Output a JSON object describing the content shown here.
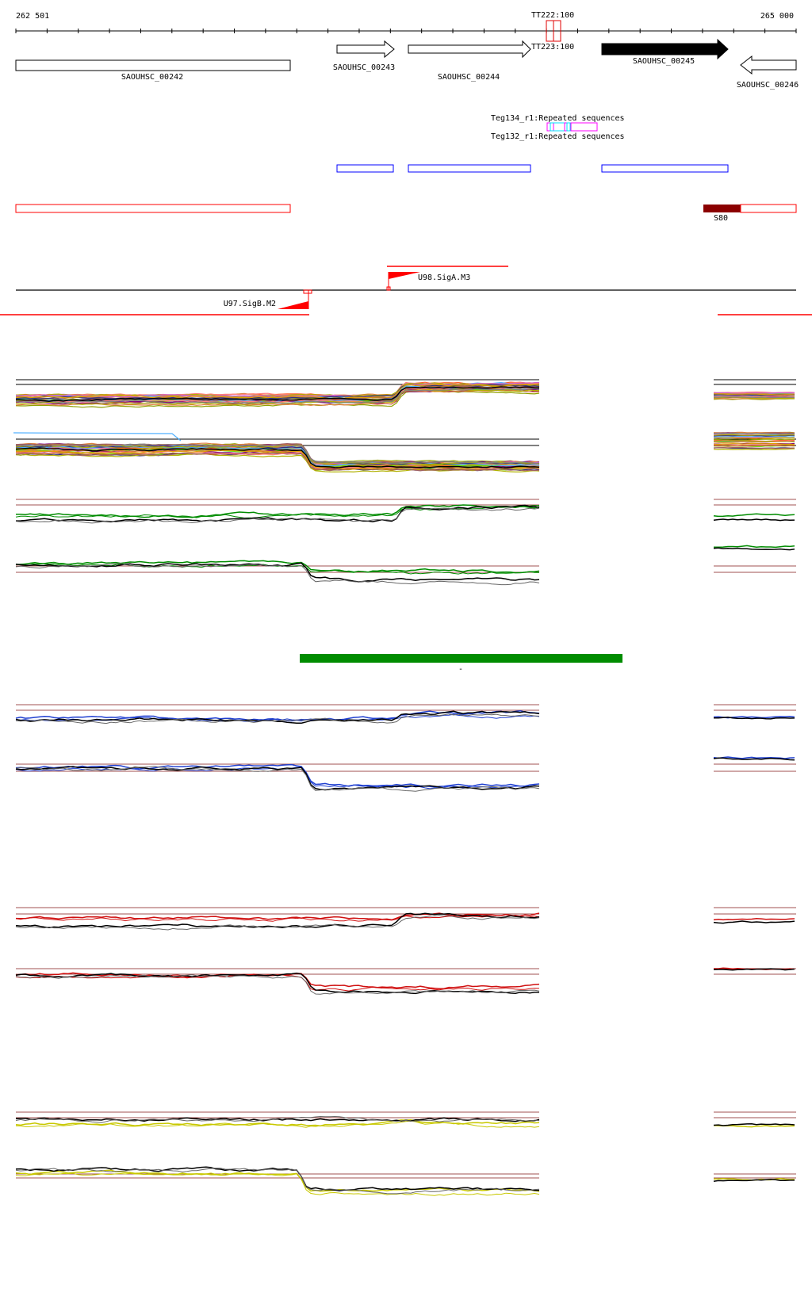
{
  "axis": {
    "start_label": "262 501",
    "end_label": "265 000"
  },
  "terminators": [
    {
      "label": "TT222:100"
    },
    {
      "label": "TT223:100"
    }
  ],
  "genes": [
    {
      "name": "SAOUHSC_00242",
      "strand": "none"
    },
    {
      "name": "SAOUHSC_00243",
      "strand": "+"
    },
    {
      "name": "SAOUHSC_00244",
      "strand": "+"
    },
    {
      "name": "SAOUHSC_00245",
      "strand": "+",
      "filled": true
    },
    {
      "name": "SAOUHSC_00246",
      "strand": "-"
    }
  ],
  "repeats": {
    "line1": "Teg134_r1:Repeated sequences",
    "line2": "Teg132_r1:Repeated sequences"
  },
  "segments": {
    "s80_label": "S80"
  },
  "promoters": [
    {
      "label": "U98.SigA.M3",
      "strand": "+"
    },
    {
      "label": "U97.SigB.M2",
      "strand": "-"
    }
  ],
  "green_feature": {
    "label": "-"
  },
  "colors": {
    "gene": "#000000",
    "terminator": "#e00000",
    "repeat_outline": "#ff00ff",
    "repeat_fill": "#00ffff",
    "cds_box": "#0000ff",
    "segment": "#ff0000",
    "segment_dark": "#8b0000",
    "green_feature": "#008c00",
    "ref_line": "#a05050",
    "track_green": "#008c00",
    "track_blue": "#2040d0",
    "track_red": "#d01010",
    "track_yellow": "#c8c800"
  }
}
